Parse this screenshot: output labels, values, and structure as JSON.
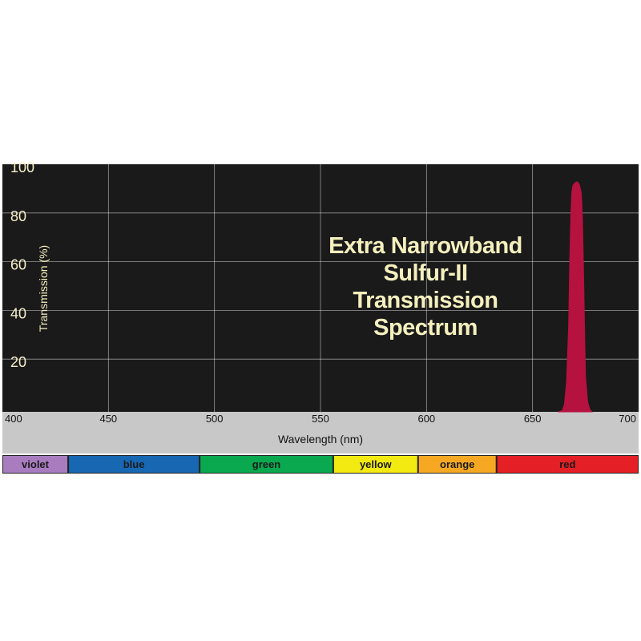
{
  "chart_data": {
    "type": "area",
    "title_lines": [
      "Extra Narrowband",
      "Sulfur-II",
      "Transmission",
      "Spectrum"
    ],
    "xlabel": "Wavelength (nm)",
    "ylabel": "Transmission (%)",
    "xlim": [
      400,
      700
    ],
    "ylim": [
      0,
      100
    ],
    "x_ticks": [
      400,
      450,
      500,
      550,
      600,
      650,
      700
    ],
    "y_ticks": [
      20,
      40,
      60,
      80,
      100
    ],
    "grid": true,
    "series": [
      {
        "color": "#b5123f",
        "points": [
          [
            662,
            0
          ],
          [
            664,
            0.5
          ],
          [
            665,
            3
          ],
          [
            666,
            12
          ],
          [
            667,
            35
          ],
          [
            667.5,
            60
          ],
          [
            668,
            80
          ],
          [
            668.5,
            90
          ],
          [
            669,
            93
          ],
          [
            670,
            94
          ],
          [
            671,
            94.5
          ],
          [
            672,
            93.5
          ],
          [
            673,
            90
          ],
          [
            673.5,
            80
          ],
          [
            674,
            60
          ],
          [
            674.5,
            35
          ],
          [
            675,
            14
          ],
          [
            676,
            4
          ],
          [
            677,
            1
          ],
          [
            678,
            0
          ]
        ]
      }
    ],
    "plot_background": "#1a1a1a",
    "grid_color": "#ffffff"
  },
  "spectrum_bands": [
    {
      "label": "violet",
      "color": "#a97cc0",
      "range": [
        400,
        431
      ]
    },
    {
      "label": "blue",
      "color": "#1767b3",
      "range": [
        431,
        493
      ]
    },
    {
      "label": "green",
      "color": "#0aa84f",
      "range": [
        493,
        556
      ]
    },
    {
      "label": "yellow",
      "color": "#f3ea12",
      "range": [
        556,
        596
      ]
    },
    {
      "label": "orange",
      "color": "#f7a823",
      "range": [
        596,
        633
      ]
    },
    {
      "label": "red",
      "color": "#e41f26",
      "range": [
        633,
        700
      ]
    }
  ]
}
